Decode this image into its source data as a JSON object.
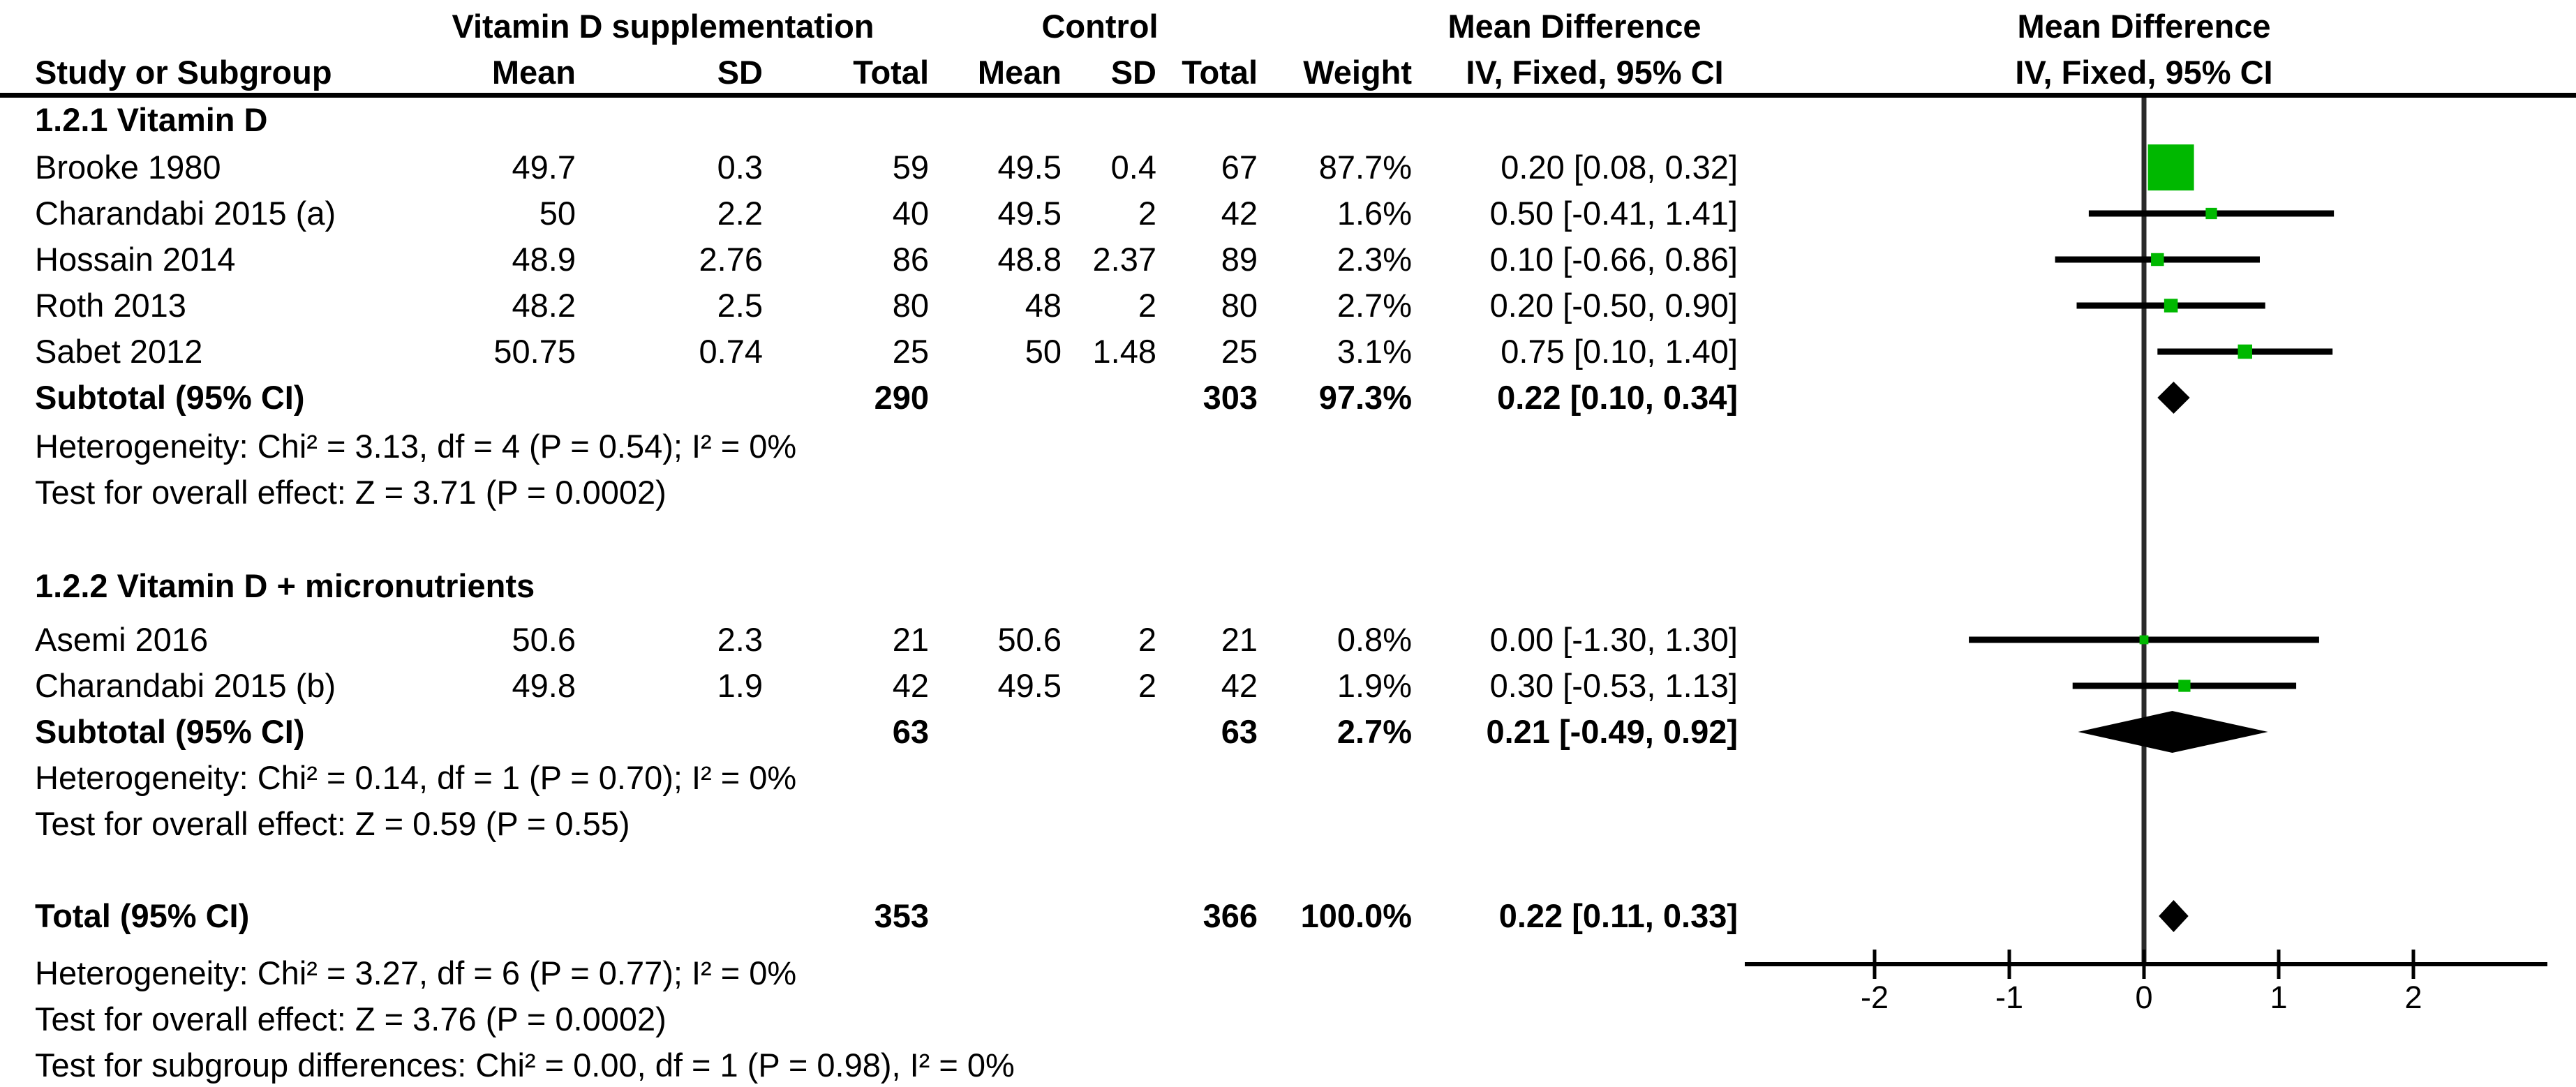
{
  "header": {
    "group1": "Vitamin D supplementation",
    "group2": "Control",
    "effect_left": "Mean Difference",
    "effect_right": "Mean Difference",
    "col_study": "Study or Subgroup",
    "col_mean1": "Mean",
    "col_sd1": "SD",
    "col_total1": "Total",
    "col_mean2": "Mean",
    "col_sd2": "SD",
    "col_total2": "Total",
    "col_weight": "Weight",
    "col_ci_left": "IV, Fixed, 95% CI",
    "col_ci_right": "IV, Fixed, 95% CI"
  },
  "colors": {
    "marker": "#00b800",
    "diamond": "#000000",
    "axis": "#000000",
    "zero_line": "#2a2a2a",
    "separator": "#000000",
    "text": "#000000"
  },
  "chart_data": {
    "type": "forest",
    "effect_measure": "Mean Difference, IV, Fixed, 95% CI",
    "x_axis": {
      "ticks": [
        -2,
        -1,
        0,
        1,
        2
      ],
      "min": -3,
      "max": 3
    },
    "subgroups": [
      {
        "label": "1.2.1 Vitamin D",
        "studies": [
          {
            "name": "Brooke 1980",
            "mean1": "49.7",
            "sd1": "0.3",
            "n1": "59",
            "mean2": "49.5",
            "sd2": "0.4",
            "n2": "67",
            "weight": "87.7%",
            "weight_pct": 87.7,
            "ci_text": "0.20 [0.08, 0.32]",
            "est": 0.2,
            "lo": 0.08,
            "hi": 0.32
          },
          {
            "name": "Charandabi 2015 (a)",
            "mean1": "50",
            "sd1": "2.2",
            "n1": "40",
            "mean2": "49.5",
            "sd2": "2",
            "n2": "42",
            "weight": "1.6%",
            "weight_pct": 1.6,
            "ci_text": "0.50 [-0.41, 1.41]",
            "est": 0.5,
            "lo": -0.41,
            "hi": 1.41
          },
          {
            "name": "Hossain 2014",
            "mean1": "48.9",
            "sd1": "2.76",
            "n1": "86",
            "mean2": "48.8",
            "sd2": "2.37",
            "n2": "89",
            "weight": "2.3%",
            "weight_pct": 2.3,
            "ci_text": "0.10 [-0.66, 0.86]",
            "est": 0.1,
            "lo": -0.66,
            "hi": 0.86
          },
          {
            "name": "Roth 2013",
            "mean1": "48.2",
            "sd1": "2.5",
            "n1": "80",
            "mean2": "48",
            "sd2": "2",
            "n2": "80",
            "weight": "2.7%",
            "weight_pct": 2.7,
            "ci_text": "0.20 [-0.50, 0.90]",
            "est": 0.2,
            "lo": -0.5,
            "hi": 0.9
          },
          {
            "name": "Sabet 2012",
            "mean1": "50.75",
            "sd1": "0.74",
            "n1": "25",
            "mean2": "50",
            "sd2": "1.48",
            "n2": "25",
            "weight": "3.1%",
            "weight_pct": 3.1,
            "ci_text": "0.75 [0.10, 1.40]",
            "est": 0.75,
            "lo": 0.1,
            "hi": 1.4
          }
        ],
        "subtotal": {
          "label": "Subtotal (95% CI)",
          "n1": "290",
          "n2": "303",
          "weight": "97.3%",
          "ci_text": "0.22 [0.10, 0.34]",
          "est": 0.22,
          "lo": 0.1,
          "hi": 0.34
        },
        "heterogeneity": "Heterogeneity: Chi² = 3.13, df = 4 (P = 0.54); I² = 0%",
        "overall_effect": "Test for overall effect: Z = 3.71 (P = 0.0002)"
      },
      {
        "label": "1.2.2 Vitamin D + micronutrients",
        "studies": [
          {
            "name": "Asemi 2016",
            "mean1": "50.6",
            "sd1": "2.3",
            "n1": "21",
            "mean2": "50.6",
            "sd2": "2",
            "n2": "21",
            "weight": "0.8%",
            "weight_pct": 0.8,
            "ci_text": "0.00 [-1.30, 1.30]",
            "est": 0.0,
            "lo": -1.3,
            "hi": 1.3
          },
          {
            "name": "Charandabi 2015 (b)",
            "mean1": "49.8",
            "sd1": "1.9",
            "n1": "42",
            "mean2": "49.5",
            "sd2": "2",
            "n2": "42",
            "weight": "1.9%",
            "weight_pct": 1.9,
            "ci_text": "0.30 [-0.53, 1.13]",
            "est": 0.3,
            "lo": -0.53,
            "hi": 1.13
          }
        ],
        "subtotal": {
          "label": "Subtotal (95% CI)",
          "n1": "63",
          "n2": "63",
          "weight": "2.7%",
          "ci_text": "0.21 [-0.49, 0.92]",
          "est": 0.21,
          "lo": -0.49,
          "hi": 0.92
        },
        "heterogeneity": "Heterogeneity: Chi² = 0.14, df = 1 (P = 0.70); I² = 0%",
        "overall_effect": "Test for overall effect: Z = 0.59 (P = 0.55)"
      }
    ],
    "total": {
      "label": "Total (95% CI)",
      "n1": "353",
      "n2": "366",
      "weight": "100.0%",
      "ci_text": "0.22 [0.11, 0.33]",
      "est": 0.22,
      "lo": 0.11,
      "hi": 0.33,
      "heterogeneity": "Heterogeneity: Chi² = 3.27, df = 6 (P = 0.77); I² = 0%",
      "overall_effect": "Test for overall effect: Z = 3.76 (P = 0.0002)",
      "subgroup_diff": "Test for subgroup differences: Chi² = 0.00, df = 1 (P = 0.98), I² = 0%"
    }
  }
}
